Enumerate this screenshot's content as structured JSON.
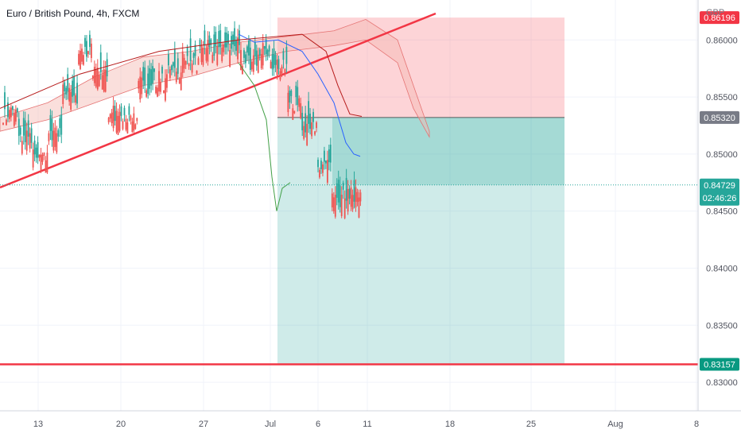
{
  "header": {
    "symbol_title": "Euro / British Pound, 4h, FXCM",
    "currency": "GBP"
  },
  "colors": {
    "bull": "#26a69a",
    "bear": "#ef5350",
    "trendline": "#f23645",
    "stop_zone": "rgba(247,82,95,0.25)",
    "target_zone": "rgba(38,166,154,0.22)",
    "cloud_up": "#a5d6a7",
    "cloud_down": "#f5b7b1",
    "tenkan": "#2962ff",
    "kijun": "#b71c1c",
    "chikou": "#43a047",
    "last_price": "#26a69a",
    "axis_text": "#50535e",
    "support": "#f23645"
  },
  "chart_data": {
    "type": "candlestick",
    "title": "Euro / British Pound, 4h, FXCM",
    "y_axis": {
      "currency": "GBP",
      "range": [
        0.8275,
        0.8635
      ],
      "ticks": [
        "0.86000",
        "0.85500",
        "0.85000",
        "0.84500",
        "0.84000",
        "0.83500",
        "0.83000"
      ]
    },
    "x_axis": {
      "ticks": [
        "13",
        "20",
        "27",
        "Jul",
        "6",
        "11",
        "18",
        "25",
        "Aug",
        "8"
      ]
    },
    "price_labels": [
      {
        "value": "0.86196",
        "kind": "stop"
      },
      {
        "value": "0.85320",
        "kind": "entry"
      },
      {
        "value": "0.84729",
        "kind": "last"
      },
      {
        "value": "0.83157",
        "kind": "support"
      }
    ],
    "countdown": "02:46:26",
    "last_price": 0.84729,
    "position": {
      "type": "short",
      "entry": 0.8532,
      "stop": 0.86196,
      "target": 0.8316,
      "start_bar": 128,
      "end_bar": 270
    },
    "horizontal_line": 0.83157,
    "trendline": {
      "from": [
        0,
        0.8489
      ],
      "to": [
        208,
        0.8625
      ]
    },
    "ohlc_sampled": [
      [
        0.8542,
        0.8556,
        0.8521,
        0.8533
      ],
      [
        0.8528,
        0.8555,
        0.8492,
        0.8498
      ],
      [
        0.8498,
        0.851,
        0.8485,
        0.8502
      ],
      [
        0.8505,
        0.8538,
        0.8499,
        0.8528
      ],
      [
        0.8528,
        0.859,
        0.852,
        0.8578
      ],
      [
        0.858,
        0.8618,
        0.8571,
        0.8602
      ],
      [
        0.8595,
        0.861,
        0.854,
        0.8552
      ],
      [
        0.8552,
        0.8571,
        0.8512,
        0.8519
      ],
      [
        0.852,
        0.8556,
        0.8514,
        0.8546
      ],
      [
        0.855,
        0.858,
        0.8541,
        0.8572
      ],
      [
        0.857,
        0.8594,
        0.8548,
        0.8558
      ],
      [
        0.856,
        0.8601,
        0.8552,
        0.8588
      ],
      [
        0.8585,
        0.8603,
        0.8562,
        0.8576
      ],
      [
        0.8578,
        0.8618,
        0.8571,
        0.8606
      ],
      [
        0.8605,
        0.8622,
        0.8577,
        0.8583
      ],
      [
        0.8585,
        0.8609,
        0.857,
        0.8601
      ],
      [
        0.8598,
        0.8612,
        0.856,
        0.8568
      ],
      [
        0.8572,
        0.8615,
        0.8566,
        0.8605
      ],
      [
        0.86,
        0.8618,
        0.8546,
        0.8552
      ],
      [
        0.8552,
        0.857,
        0.8531,
        0.854
      ],
      [
        0.854,
        0.856,
        0.8506,
        0.8512
      ],
      [
        0.8512,
        0.8519,
        0.8462,
        0.8468
      ],
      [
        0.847,
        0.8482,
        0.8444,
        0.8452
      ],
      [
        0.8452,
        0.8481,
        0.8446,
        0.8473
      ]
    ],
    "indicators": [
      "Ichimoku Cloud",
      "Position (short)",
      "Trendline"
    ]
  }
}
